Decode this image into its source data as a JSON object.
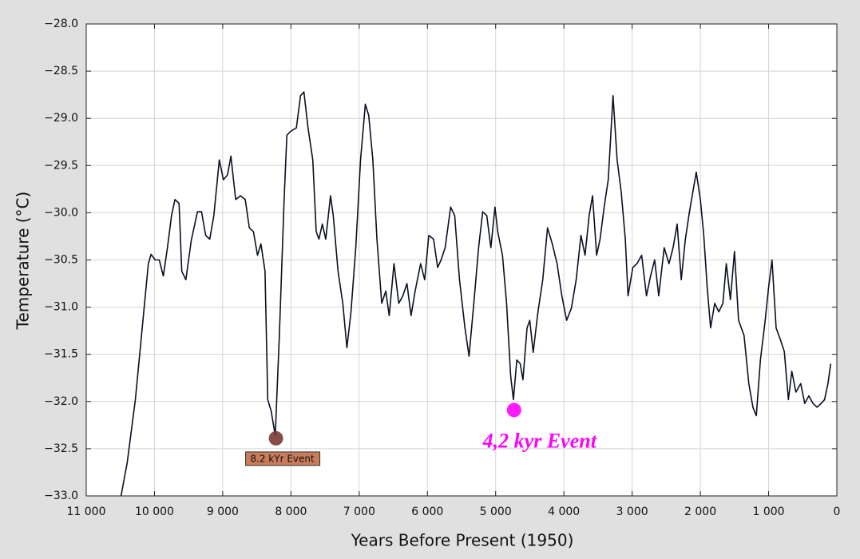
{
  "chart_data": {
    "type": "line",
    "x_label": "Years Before Present (1950)",
    "y_label": "Temperature (°C)",
    "color": "#0a1020",
    "grid": true,
    "xlim": [
      11000,
      0
    ],
    "ylim": [
      -33,
      -28
    ],
    "xticks": [
      {
        "value": 11000,
        "label": "11 000"
      },
      {
        "value": 10000,
        "label": "10 000"
      },
      {
        "value": 9000,
        "label": "9 000"
      },
      {
        "value": 8000,
        "label": "8 000"
      },
      {
        "value": 7000,
        "label": "7 000"
      },
      {
        "value": 6000,
        "label": "6 000"
      },
      {
        "value": 5000,
        "label": "5 000"
      },
      {
        "value": 4000,
        "label": "4 000"
      },
      {
        "value": 3000,
        "label": "3 000"
      },
      {
        "value": 2000,
        "label": "2 000"
      },
      {
        "value": 1000,
        "label": "1 000"
      },
      0
    ],
    "yticks": [
      {
        "value": -28,
        "label": "−28.0"
      },
      {
        "value": -28.5,
        "label": "−28.5"
      },
      {
        "value": -29,
        "label": "−29.0"
      },
      {
        "value": -29.5,
        "label": "−29.5"
      },
      {
        "value": -30,
        "label": "−30.0"
      },
      {
        "value": -30.5,
        "label": "−30.5"
      },
      {
        "value": -31,
        "label": "−31.0"
      },
      {
        "value": -31.5,
        "label": "−31.5"
      },
      {
        "value": -32,
        "label": "−32.0"
      },
      {
        "value": -32.5,
        "label": "−32.5"
      },
      {
        "value": -33,
        "label": "−33.0"
      }
    ],
    "x": [
      10490,
      10400,
      10280,
      10190,
      10090,
      10050,
      9990,
      9930,
      9870,
      9810,
      9750,
      9700,
      9640,
      9600,
      9540,
      9460,
      9370,
      9310,
      9250,
      9190,
      9130,
      9050,
      8990,
      8930,
      8880,
      8810,
      8740,
      8670,
      8610,
      8550,
      8490,
      8440,
      8380,
      8340,
      8290,
      8230,
      8170,
      8100,
      8060,
      8010,
      7920,
      7860,
      7810,
      7750,
      7680,
      7630,
      7590,
      7540,
      7490,
      7420,
      7380,
      7310,
      7240,
      7180,
      7120,
      7050,
      6980,
      6910,
      6860,
      6800,
      6740,
      6670,
      6610,
      6560,
      6490,
      6420,
      6360,
      6300,
      6240,
      6180,
      6100,
      6040,
      5980,
      5910,
      5850,
      5800,
      5740,
      5660,
      5600,
      5530,
      5450,
      5390,
      5320,
      5250,
      5190,
      5130,
      5070,
      5010,
      4970,
      4900,
      4840,
      4780,
      4740,
      4690,
      4640,
      4600,
      4540,
      4500,
      4450,
      4380,
      4310,
      4240,
      4170,
      4100,
      4030,
      3960,
      3890,
      3820,
      3750,
      3690,
      3630,
      3580,
      3520,
      3470,
      3410,
      3350,
      3280,
      3220,
      3160,
      3100,
      3060,
      2990,
      2930,
      2860,
      2790,
      2730,
      2670,
      2610,
      2530,
      2460,
      2400,
      2340,
      2280,
      2220,
      2160,
      2110,
      2060,
      2000,
      1950,
      1900,
      1850,
      1790,
      1730,
      1670,
      1620,
      1560,
      1500,
      1440,
      1360,
      1290,
      1230,
      1180,
      1120,
      1050,
      1000,
      950,
      890,
      830,
      770,
      710,
      660,
      600,
      530,
      470,
      410,
      350,
      290,
      230,
      180,
      130,
      90
    ],
    "values": [
      -33.0,
      -32.65,
      -31.98,
      -31.3,
      -30.54,
      -30.44,
      -30.5,
      -30.5,
      -30.67,
      -30.37,
      -30.03,
      -29.86,
      -29.9,
      -30.62,
      -30.71,
      -30.29,
      -29.99,
      -29.99,
      -30.24,
      -30.28,
      -30.03,
      -29.44,
      -29.65,
      -29.6,
      -29.4,
      -29.86,
      -29.82,
      -29.86,
      -30.16,
      -30.2,
      -30.45,
      -30.33,
      -30.62,
      -31.98,
      -32.1,
      -32.36,
      -31.3,
      -29.86,
      -29.18,
      -29.14,
      -29.1,
      -28.76,
      -28.72,
      -29.1,
      -29.44,
      -30.2,
      -30.28,
      -30.12,
      -30.28,
      -29.82,
      -30.03,
      -30.62,
      -30.96,
      -31.43,
      -31.05,
      -30.37,
      -29.44,
      -28.85,
      -28.97,
      -29.44,
      -30.28,
      -30.96,
      -30.83,
      -31.09,
      -30.54,
      -30.96,
      -30.88,
      -30.75,
      -31.09,
      -30.83,
      -30.54,
      -30.71,
      -30.24,
      -30.28,
      -30.58,
      -30.5,
      -30.37,
      -29.94,
      -30.03,
      -30.71,
      -31.22,
      -31.52,
      -30.96,
      -30.37,
      -29.99,
      -30.03,
      -30.37,
      -29.94,
      -30.2,
      -30.45,
      -30.96,
      -31.73,
      -31.98,
      -31.56,
      -31.6,
      -31.77,
      -31.22,
      -31.14,
      -31.48,
      -31.05,
      -30.71,
      -30.16,
      -30.33,
      -30.54,
      -30.88,
      -31.14,
      -31.01,
      -30.71,
      -30.24,
      -30.45,
      -30.03,
      -29.82,
      -30.45,
      -30.28,
      -29.94,
      -29.65,
      -28.76,
      -29.44,
      -29.78,
      -30.28,
      -30.88,
      -30.58,
      -30.54,
      -30.45,
      -30.88,
      -30.67,
      -30.5,
      -30.88,
      -30.37,
      -30.54,
      -30.37,
      -30.12,
      -30.71,
      -30.28,
      -29.99,
      -29.78,
      -29.57,
      -29.86,
      -30.24,
      -30.79,
      -31.22,
      -30.96,
      -31.05,
      -30.96,
      -30.54,
      -30.92,
      -30.41,
      -31.14,
      -31.3,
      -31.81,
      -32.06,
      -32.15,
      -31.56,
      -31.14,
      -30.79,
      -30.5,
      -31.22,
      -31.34,
      -31.47,
      -31.98,
      -31.68,
      -31.9,
      -31.81,
      -32.02,
      -31.94,
      -32.02,
      -32.06,
      -32.02,
      -31.98,
      -31.81,
      -31.6
    ],
    "annotations": [
      {
        "text": "8.2 kYr Event",
        "x": 8220,
        "y": -32.39,
        "color": "#7a3a35",
        "label_color": "#c87c5a"
      },
      {
        "text": "4,2 kyr Event",
        "x": 4730,
        "y": -32.09,
        "color": "#ff00ff"
      }
    ]
  }
}
